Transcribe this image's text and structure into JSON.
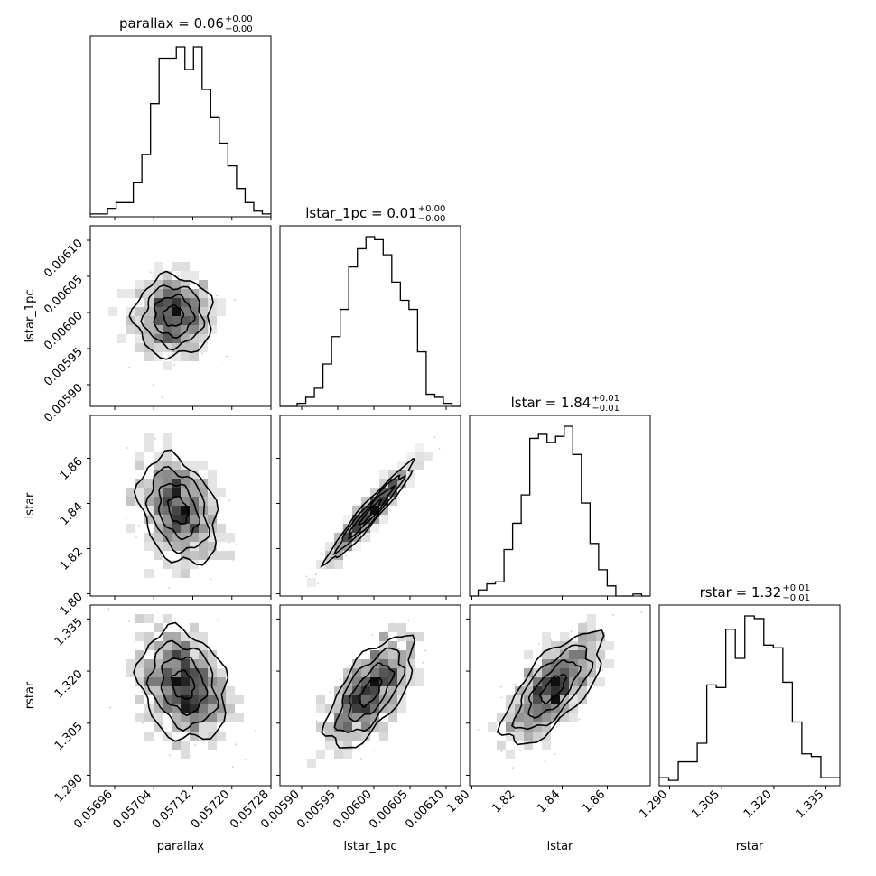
{
  "chart_data": {
    "type": "corner",
    "parameters": [
      "parallax",
      "lstar_1pc",
      "lstar",
      "rstar"
    ],
    "titles": [
      {
        "param": "parallax",
        "text": "parallax = 0.06",
        "sup": "+0.00",
        "sub": "−0.00"
      },
      {
        "param": "lstar_1pc",
        "text": "lstar_1pc = 0.01",
        "sup": "+0.00",
        "sub": "−0.00"
      },
      {
        "param": "lstar",
        "text": "lstar = 1.84",
        "sup": "+0.01",
        "sub": "−0.01"
      },
      {
        "param": "rstar",
        "text": "rstar = 1.32",
        "sup": "+0.01",
        "sub": "−0.01"
      }
    ],
    "axes": [
      {
        "param": "parallax",
        "range": [
          0.05691,
          0.05728
        ],
        "ticks": [
          0.05696,
          0.05704,
          0.05712,
          0.0572,
          0.05728
        ],
        "tick_labels": [
          "0.05696",
          "0.05704",
          "0.05712",
          "0.05720",
          "0.05728"
        ]
      },
      {
        "param": "lstar_1pc",
        "range": [
          0.00587,
          0.00612
        ],
        "ticks": [
          0.0059,
          0.00595,
          0.006,
          0.00605,
          0.0061
        ],
        "tick_labels": [
          "0.00590",
          "0.00595",
          "0.00600",
          "0.00605",
          "0.00610"
        ]
      },
      {
        "param": "lstar",
        "range": [
          1.799,
          1.879
        ],
        "ticks": [
          1.8,
          1.82,
          1.84,
          1.86
        ],
        "tick_labels": [
          "1.80",
          "1.82",
          "1.84",
          "1.86"
        ]
      },
      {
        "param": "rstar",
        "range": [
          1.287,
          1.339
        ],
        "ticks": [
          1.29,
          1.305,
          1.32,
          1.335
        ],
        "tick_labels": [
          "1.290",
          "1.305",
          "1.320",
          "1.335"
        ]
      }
    ],
    "histograms": [
      {
        "param": "parallax",
        "range": [
          0.05691,
          0.05728
        ],
        "counts": [
          1,
          1,
          3,
          5,
          5,
          12,
          22,
          40,
          56,
          56,
          60,
          52,
          60,
          45,
          35,
          26,
          18,
          10,
          5,
          2,
          1
        ]
      },
      {
        "param": "lstar_1pc",
        "range": [
          0.00587,
          0.00612
        ],
        "counts": [
          0,
          0,
          1,
          3,
          6,
          14,
          23,
          32,
          46,
          52,
          56,
          55,
          50,
          41,
          35,
          32,
          18,
          4,
          3,
          1,
          0
        ]
      },
      {
        "param": "lstar",
        "range": [
          1.799,
          1.879
        ],
        "counts": [
          0,
          3,
          6,
          7,
          23,
          36,
          50,
          78,
          80,
          76,
          79,
          84,
          70,
          46,
          26,
          13,
          5,
          0,
          0,
          1,
          0
        ]
      },
      {
        "param": "rstar",
        "range": [
          1.287,
          1.339
        ],
        "counts": [
          3,
          2,
          9,
          9,
          16,
          38,
          37,
          59,
          48,
          64,
          63,
          53,
          52,
          39,
          24,
          12,
          11,
          3,
          3
        ]
      }
    ],
    "pairs": [
      {
        "x": "parallax",
        "y": "lstar_1pc",
        "center": [
          0.05708,
          0.005995
        ],
        "spread": [
          4e-05,
          2.8e-05
        ],
        "correlation": 0.0
      },
      {
        "x": "parallax",
        "y": "lstar",
        "center": [
          0.05709,
          1.837
        ],
        "spread": [
          4e-05,
          0.012
        ],
        "correlation": -0.3
      },
      {
        "x": "parallax",
        "y": "rstar",
        "center": [
          0.0571,
          1.316
        ],
        "spread": [
          4.5e-05,
          0.008
        ],
        "correlation": -0.2
      },
      {
        "x": "lstar_1pc",
        "y": "lstar",
        "center": [
          0.005995,
          1.836
        ],
        "spread": [
          3e-05,
          0.011
        ],
        "correlation": 0.96
      },
      {
        "x": "lstar_1pc",
        "y": "rstar",
        "center": [
          0.005995,
          1.314
        ],
        "spread": [
          3e-05,
          0.008
        ],
        "correlation": 0.65
      },
      {
        "x": "lstar",
        "y": "rstar",
        "center": [
          1.836,
          1.315
        ],
        "spread": [
          0.011,
          0.008
        ],
        "correlation": 0.7
      }
    ]
  }
}
